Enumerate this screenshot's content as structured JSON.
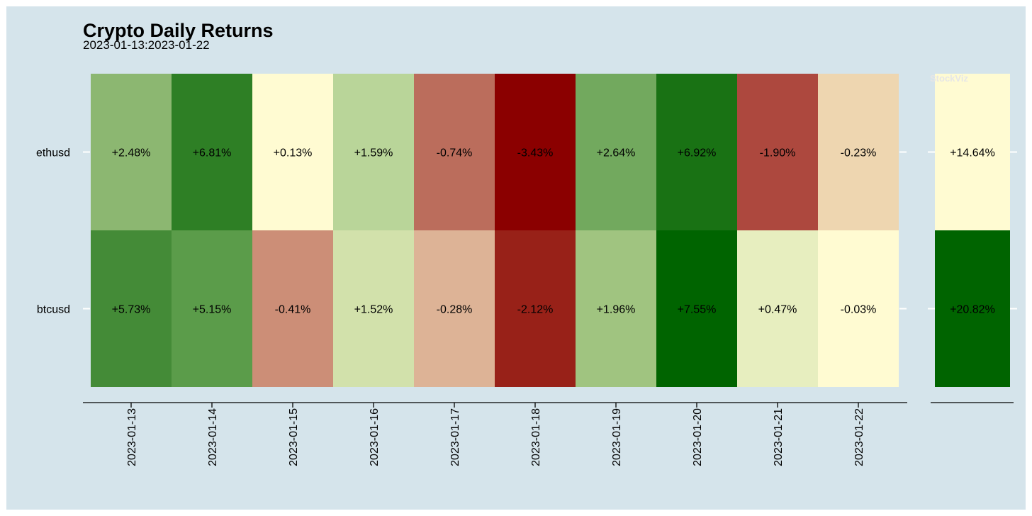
{
  "chart_data": {
    "type": "heatmap",
    "title": "Crypto Daily Returns",
    "subtitle": "2023-01-13:2023-01-22",
    "watermark": "StockViz",
    "rows": [
      "ethusd",
      "btcusd"
    ],
    "columns": [
      "2023-01-13",
      "2023-01-14",
      "2023-01-15",
      "2023-01-16",
      "2023-01-17",
      "2023-01-18",
      "2023-01-19",
      "2023-01-20",
      "2023-01-21",
      "2023-01-22"
    ],
    "values": [
      [
        2.48,
        6.81,
        0.13,
        1.59,
        -0.74,
        -3.43,
        2.64,
        6.92,
        -1.9,
        -0.23
      ],
      [
        5.73,
        5.15,
        -0.41,
        1.52,
        -0.28,
        -2.12,
        1.96,
        7.55,
        0.47,
        -0.03
      ]
    ],
    "labels": [
      [
        "+2.48%",
        "+6.81%",
        "+0.13%",
        "+1.59%",
        "-0.74%",
        "-3.43%",
        "+2.64%",
        "+6.92%",
        "-1.90%",
        "-0.23%"
      ],
      [
        "+5.73%",
        "+5.15%",
        "-0.41%",
        "+1.52%",
        "-0.28%",
        "-2.12%",
        "+1.96%",
        "+7.55%",
        "+0.47%",
        "-0.03%"
      ]
    ],
    "cell_colors": [
      [
        "#8cb771",
        "#2e7f25",
        "#fffbd2",
        "#b9d599",
        "#bb6d5c",
        "#8b0000",
        "#72a95e",
        "#197214",
        "#ad483e",
        "#eed6b0"
      ],
      [
        "#448b37",
        "#5b9c4a",
        "#cc8e77",
        "#d2e1ab",
        "#ddb396",
        "#982118",
        "#a0c480",
        "#006400",
        "#e7eebf",
        "#fffbd2"
      ]
    ],
    "totals": [
      14.64,
      20.82
    ],
    "total_labels": [
      "+14.64%",
      "+20.82%"
    ],
    "total_colors": [
      "#fffbd2",
      "#006400"
    ],
    "colors": {
      "background": "#d5e4eb",
      "positive_max": "#006400",
      "neutral": "#fffbd2",
      "negative_max": "#8b0000"
    }
  }
}
